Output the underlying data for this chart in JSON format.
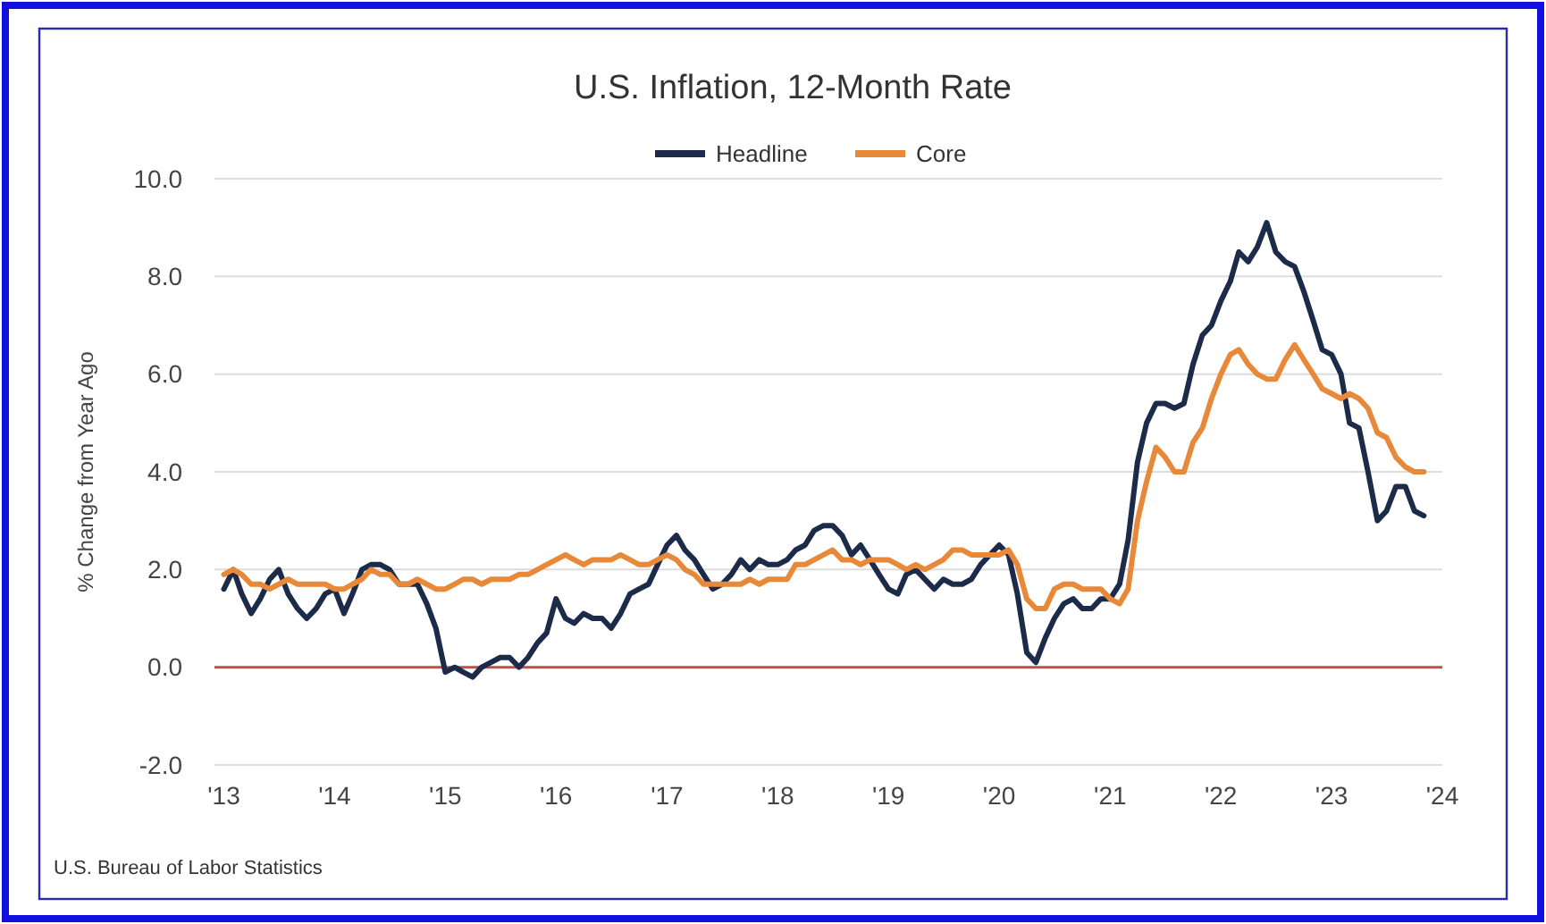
{
  "chart_data": {
    "type": "line",
    "title": "U.S. Inflation, 12-Month Rate",
    "ylabel": "% Change from Year Ago",
    "x": [
      "2013-01",
      "2013-02",
      "2013-03",
      "2013-04",
      "2013-05",
      "2013-06",
      "2013-07",
      "2013-08",
      "2013-09",
      "2013-10",
      "2013-11",
      "2013-12",
      "2014-01",
      "2014-02",
      "2014-03",
      "2014-04",
      "2014-05",
      "2014-06",
      "2014-07",
      "2014-08",
      "2014-09",
      "2014-10",
      "2014-11",
      "2014-12",
      "2015-01",
      "2015-02",
      "2015-03",
      "2015-04",
      "2015-05",
      "2015-06",
      "2015-07",
      "2015-08",
      "2015-09",
      "2015-10",
      "2015-11",
      "2015-12",
      "2016-01",
      "2016-02",
      "2016-03",
      "2016-04",
      "2016-05",
      "2016-06",
      "2016-07",
      "2016-08",
      "2016-09",
      "2016-10",
      "2016-11",
      "2016-12",
      "2017-01",
      "2017-02",
      "2017-03",
      "2017-04",
      "2017-05",
      "2017-06",
      "2017-07",
      "2017-08",
      "2017-09",
      "2017-10",
      "2017-11",
      "2017-12",
      "2018-01",
      "2018-02",
      "2018-03",
      "2018-04",
      "2018-05",
      "2018-06",
      "2018-07",
      "2018-08",
      "2018-09",
      "2018-10",
      "2018-11",
      "2018-12",
      "2019-01",
      "2019-02",
      "2019-03",
      "2019-04",
      "2019-05",
      "2019-06",
      "2019-07",
      "2019-08",
      "2019-09",
      "2019-10",
      "2019-11",
      "2019-12",
      "2020-01",
      "2020-02",
      "2020-03",
      "2020-04",
      "2020-05",
      "2020-06",
      "2020-07",
      "2020-08",
      "2020-09",
      "2020-10",
      "2020-11",
      "2020-12",
      "2021-01",
      "2021-02",
      "2021-03",
      "2021-04",
      "2021-05",
      "2021-06",
      "2021-07",
      "2021-08",
      "2021-09",
      "2021-10",
      "2021-11",
      "2021-12",
      "2022-01",
      "2022-02",
      "2022-03",
      "2022-04",
      "2022-05",
      "2022-06",
      "2022-07",
      "2022-08",
      "2022-09",
      "2022-10",
      "2022-11",
      "2022-12",
      "2023-01",
      "2023-02",
      "2023-03",
      "2023-04",
      "2023-05",
      "2023-06",
      "2023-07",
      "2023-08",
      "2023-09",
      "2023-10",
      "2023-11"
    ],
    "series": [
      {
        "name": "Headline",
        "color": "#1c2b4a",
        "values": [
          1.6,
          2.0,
          1.5,
          1.1,
          1.4,
          1.8,
          2.0,
          1.5,
          1.2,
          1.0,
          1.2,
          1.5,
          1.6,
          1.1,
          1.5,
          2.0,
          2.1,
          2.1,
          2.0,
          1.7,
          1.7,
          1.7,
          1.3,
          0.8,
          -0.1,
          0.0,
          -0.1,
          -0.2,
          0.0,
          0.1,
          0.2,
          0.2,
          0.0,
          0.2,
          0.5,
          0.7,
          1.4,
          1.0,
          0.9,
          1.1,
          1.0,
          1.0,
          0.8,
          1.1,
          1.5,
          1.6,
          1.7,
          2.1,
          2.5,
          2.7,
          2.4,
          2.2,
          1.9,
          1.6,
          1.7,
          1.9,
          2.2,
          2.0,
          2.2,
          2.1,
          2.1,
          2.2,
          2.4,
          2.5,
          2.8,
          2.9,
          2.9,
          2.7,
          2.3,
          2.5,
          2.2,
          1.9,
          1.6,
          1.5,
          1.9,
          2.0,
          1.8,
          1.6,
          1.8,
          1.7,
          1.7,
          1.8,
          2.1,
          2.3,
          2.5,
          2.3,
          1.5,
          0.3,
          0.1,
          0.6,
          1.0,
          1.3,
          1.4,
          1.2,
          1.2,
          1.4,
          1.4,
          1.7,
          2.6,
          4.2,
          5.0,
          5.4,
          5.4,
          5.3,
          5.4,
          6.2,
          6.8,
          7.0,
          7.5,
          7.9,
          8.5,
          8.3,
          8.6,
          9.1,
          8.5,
          8.3,
          8.2,
          7.7,
          7.1,
          6.5,
          6.4,
          6.0,
          5.0,
          4.9,
          4.0,
          3.0,
          3.2,
          3.7,
          3.7,
          3.2,
          3.1
        ]
      },
      {
        "name": "Core",
        "color": "#e8893a",
        "values": [
          1.9,
          2.0,
          1.9,
          1.7,
          1.7,
          1.6,
          1.7,
          1.8,
          1.7,
          1.7,
          1.7,
          1.7,
          1.6,
          1.6,
          1.7,
          1.8,
          2.0,
          1.9,
          1.9,
          1.7,
          1.7,
          1.8,
          1.7,
          1.6,
          1.6,
          1.7,
          1.8,
          1.8,
          1.7,
          1.8,
          1.8,
          1.8,
          1.9,
          1.9,
          2.0,
          2.1,
          2.2,
          2.3,
          2.2,
          2.1,
          2.2,
          2.2,
          2.2,
          2.3,
          2.2,
          2.1,
          2.1,
          2.2,
          2.3,
          2.2,
          2.0,
          1.9,
          1.7,
          1.7,
          1.7,
          1.7,
          1.7,
          1.8,
          1.7,
          1.8,
          1.8,
          1.8,
          2.1,
          2.1,
          2.2,
          2.3,
          2.4,
          2.2,
          2.2,
          2.1,
          2.2,
          2.2,
          2.2,
          2.1,
          2.0,
          2.1,
          2.0,
          2.1,
          2.2,
          2.4,
          2.4,
          2.3,
          2.3,
          2.3,
          2.3,
          2.4,
          2.1,
          1.4,
          1.2,
          1.2,
          1.6,
          1.7,
          1.7,
          1.6,
          1.6,
          1.6,
          1.4,
          1.3,
          1.6,
          3.0,
          3.8,
          4.5,
          4.3,
          4.0,
          4.0,
          4.6,
          4.9,
          5.5,
          6.0,
          6.4,
          6.5,
          6.2,
          6.0,
          5.9,
          5.9,
          6.3,
          6.6,
          6.3,
          6.0,
          5.7,
          5.6,
          5.5,
          5.6,
          5.5,
          5.3,
          4.8,
          4.7,
          4.3,
          4.1,
          4.0,
          4.0
        ]
      }
    ],
    "xlim": [
      "2012-12",
      "2024-01"
    ],
    "xticks": [
      {
        "value": "2013-01",
        "label": "'13"
      },
      {
        "value": "2014-01",
        "label": "'14"
      },
      {
        "value": "2015-01",
        "label": "'15"
      },
      {
        "value": "2016-01",
        "label": "'16"
      },
      {
        "value": "2017-01",
        "label": "'17"
      },
      {
        "value": "2018-01",
        "label": "'18"
      },
      {
        "value": "2019-01",
        "label": "'19"
      },
      {
        "value": "2020-01",
        "label": "'20"
      },
      {
        "value": "2021-01",
        "label": "'21"
      },
      {
        "value": "2022-01",
        "label": "'22"
      },
      {
        "value": "2023-01",
        "label": "'23"
      },
      {
        "value": "2024-01",
        "label": "'24"
      }
    ],
    "ylim": [
      -2,
      10
    ],
    "yticks": [
      {
        "value": -2,
        "label": "-2.0"
      },
      {
        "value": 0,
        "label": "0.0"
      },
      {
        "value": 2,
        "label": "2.0"
      },
      {
        "value": 4,
        "label": "4.0"
      },
      {
        "value": 6,
        "label": "6.0"
      },
      {
        "value": 8,
        "label": "8.0"
      },
      {
        "value": 10,
        "label": "10.0"
      }
    ],
    "ref_lines": [
      {
        "axis": "y",
        "value": 0,
        "color": "#c0504d"
      }
    ],
    "grid": "y",
    "legend": "top",
    "line_style": "solid",
    "marker": "none",
    "annotations": [
      "U.S. Bureau of Labor Statistics"
    ]
  }
}
